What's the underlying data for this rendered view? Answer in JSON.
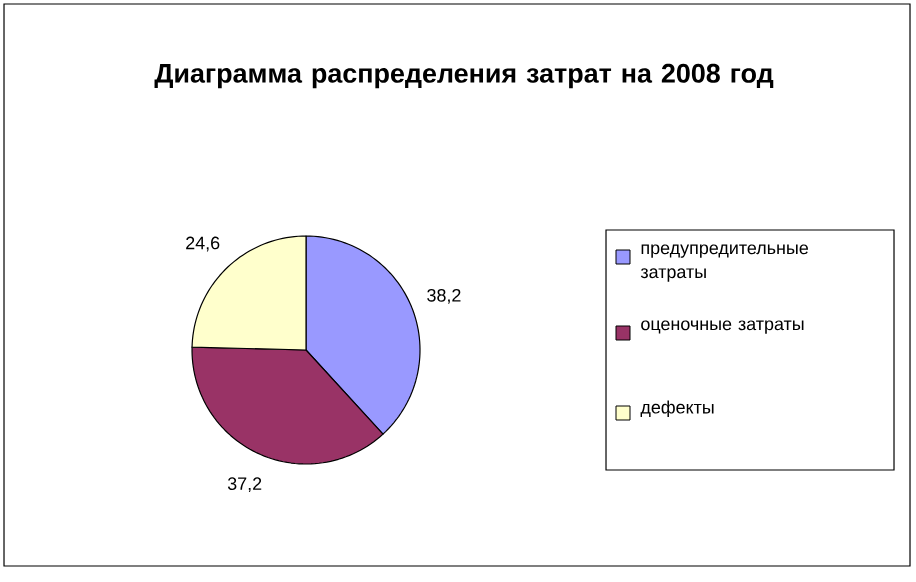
{
  "chart_data": {
    "type": "pie",
    "title": "Диаграмма распределения затрат на 2008 год",
    "categories": [
      "предупредительные затраты",
      "оценочные затраты",
      "дефекты"
    ],
    "values": [
      38.2,
      37.2,
      24.6
    ],
    "value_labels": [
      "38,2",
      "37,2",
      "24,6"
    ],
    "colors": [
      "#9999ff",
      "#993366",
      "#ffffcc"
    ],
    "legend": "right"
  }
}
